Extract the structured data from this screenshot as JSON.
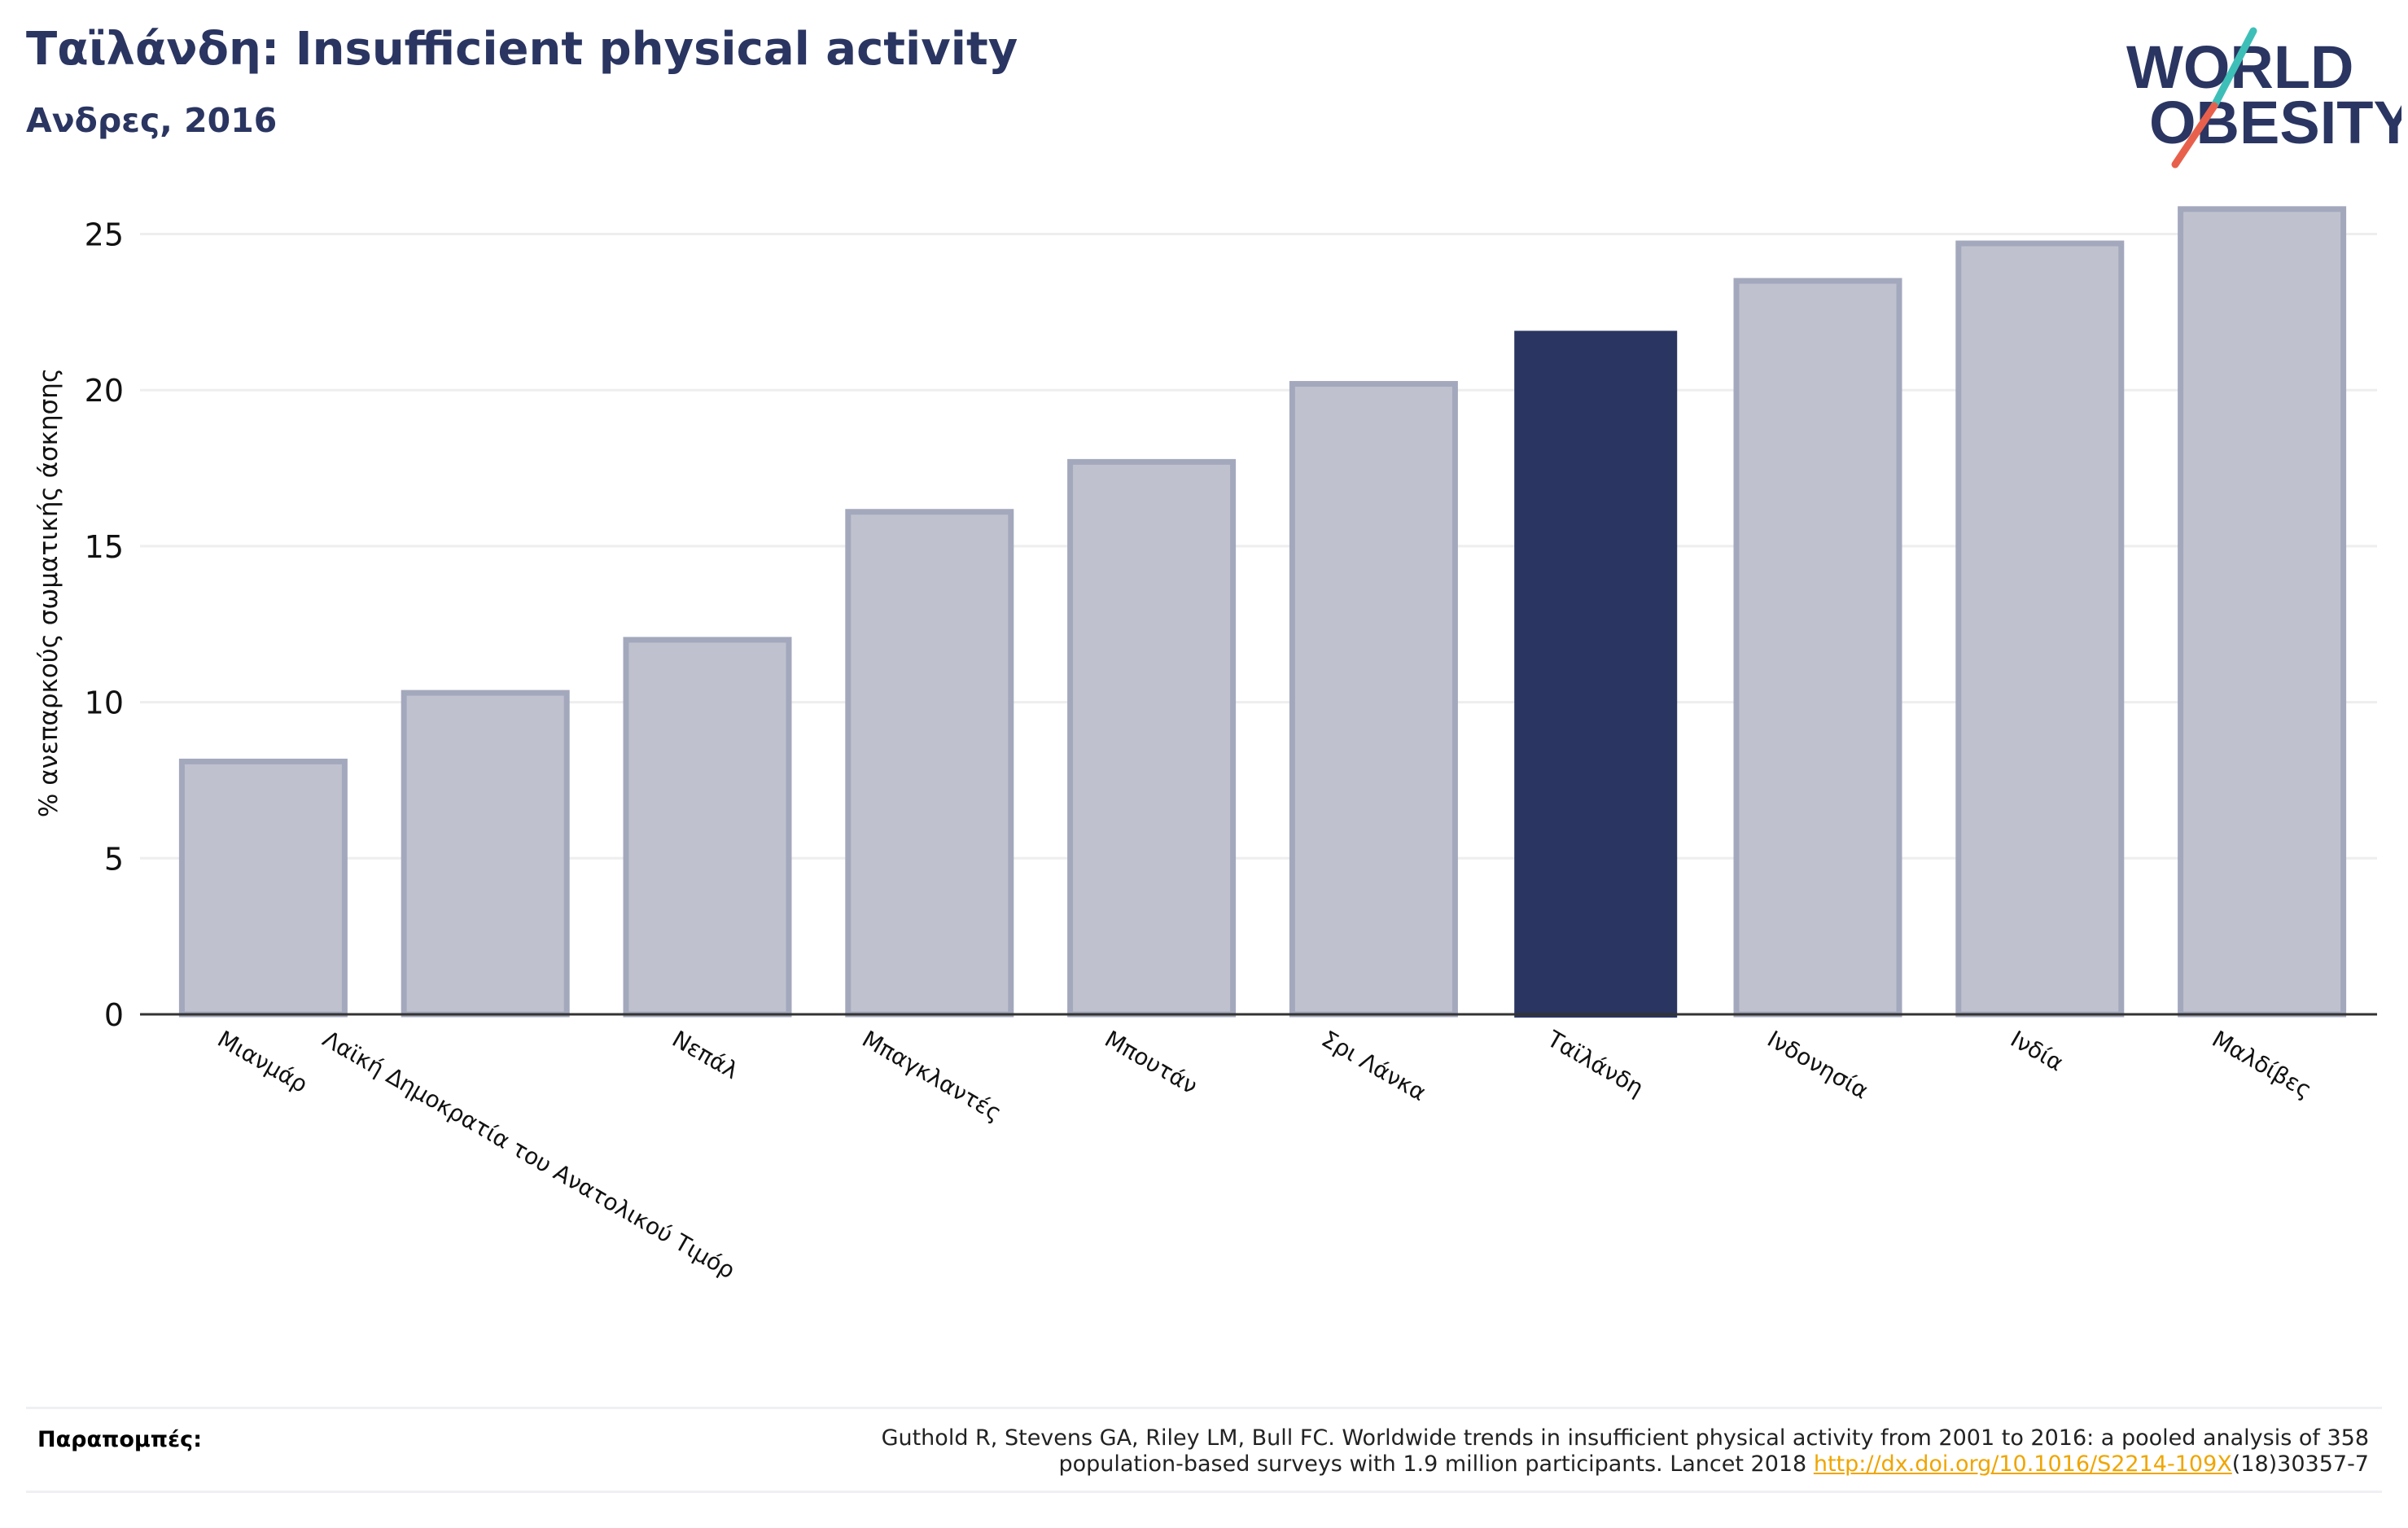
{
  "header": {
    "title": "Ταϊλάνδη: Insufficient physical activity",
    "subtitle": "Ανδρες, 2016"
  },
  "logo": {
    "line1": "WORLD",
    "line2": "OBESITY",
    "colors": {
      "text": "#2a3561",
      "slash_top": "#3dbfb8",
      "slash_bottom": "#e8604c"
    }
  },
  "colors": {
    "highlight": "#2a3561",
    "bar_fill": "#bfc2ce",
    "bar_stroke": "#a3a8bd",
    "grid": "#eeeeee",
    "axis": "#333333",
    "link": "#f0a500"
  },
  "chart_data": {
    "type": "bar",
    "title": "",
    "ylabel": "% ανεπαρκούς σωματικής άσκησης",
    "xlabel": "",
    "ylim": [
      0,
      26.5
    ],
    "yticks": [
      0,
      5,
      10,
      15,
      20,
      25
    ],
    "grid": true,
    "highlight": "Ταϊλάνδη",
    "categories": [
      "Μιανμάρ",
      "Λαϊκή Δημοκρατία του Ανατολικού Τιμόρ",
      "Νεπάλ",
      "Μπαγκλαντές",
      "Μπουτάν",
      "Σρι Λάνκα",
      "Ταϊλάνδη",
      "Ινδονησία",
      "Ινδία",
      "Μαλδίβες"
    ],
    "values": [
      8.1,
      10.3,
      12.0,
      16.1,
      17.7,
      20.2,
      21.9,
      23.5,
      24.7,
      25.8
    ]
  },
  "references": {
    "label": "Παραπομπές:",
    "line1": "Guthold R, Stevens GA, Riley LM, Bull FC. Worldwide trends in insufficient physical activity from 2001 to 2016: a pooled analysis of 358",
    "line2_before": "population-based surveys with 1.9 million participants. Lancet 2018 ",
    "link_text": "http://dx.doi.org/10.1016/S2214-109X",
    "line2_after": "(18)30357-7"
  }
}
